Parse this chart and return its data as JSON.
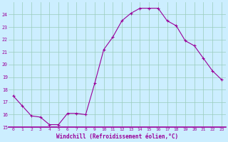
{
  "x": [
    0,
    1,
    2,
    3,
    4,
    5,
    6,
    7,
    8,
    9,
    10,
    11,
    12,
    13,
    14,
    15,
    16,
    17,
    18,
    19,
    20,
    21,
    22,
    23
  ],
  "y": [
    17.5,
    16.7,
    15.9,
    15.8,
    15.2,
    15.2,
    16.1,
    16.1,
    16.0,
    18.5,
    21.2,
    22.2,
    23.5,
    24.1,
    24.5,
    24.5,
    24.5,
    23.5,
    23.1,
    21.9,
    21.5,
    20.5,
    19.5,
    18.8
  ],
  "line_color": "#990099",
  "marker_color": "#990099",
  "bg_color": "#cceeff",
  "grid_color": "#99ccbb",
  "xlabel": "Windchill (Refroidissement éolien,°C)",
  "xlim": [
    -0.5,
    23.5
  ],
  "ylim": [
    15,
    25
  ],
  "yticks": [
    15,
    16,
    17,
    18,
    19,
    20,
    21,
    22,
    23,
    24
  ],
  "xticks": [
    0,
    1,
    2,
    3,
    4,
    5,
    6,
    7,
    8,
    9,
    10,
    11,
    12,
    13,
    14,
    15,
    16,
    17,
    18,
    19,
    20,
    21,
    22,
    23
  ],
  "xtick_labels": [
    "0",
    "1",
    "2",
    "3",
    "4",
    "5",
    "6",
    "7",
    "8",
    "9",
    "10",
    "11",
    "12",
    "13",
    "14",
    "15",
    "16",
    "17",
    "18",
    "19",
    "20",
    "21",
    "22",
    "23"
  ],
  "ytick_labels": [
    "15",
    "16",
    "17",
    "18",
    "19",
    "20",
    "21",
    "22",
    "23",
    "24"
  ]
}
